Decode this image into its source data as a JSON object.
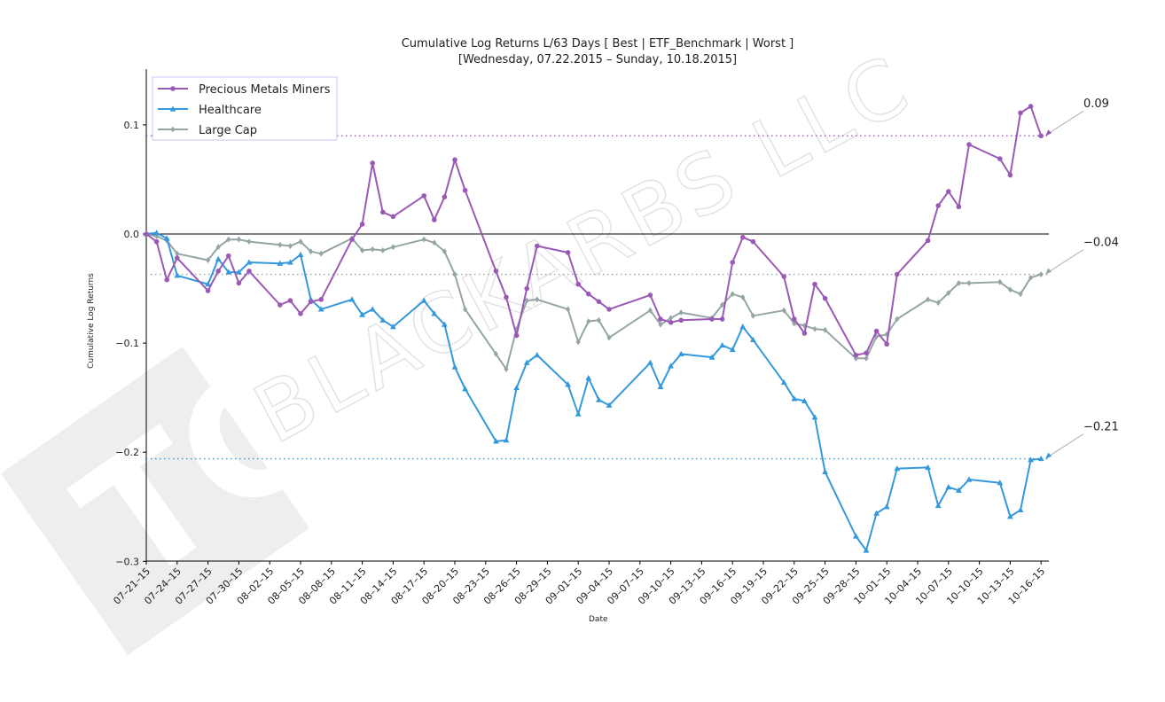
{
  "chart_data": {
    "type": "line",
    "title": "Cumulative Log Returns L/63 Days [ Best | ETF_Benchmark | Worst ]",
    "subtitle": "[Wednesday, 07.22.2015 – Sunday, 10.18.2015]",
    "xlabel": "Date",
    "ylabel": "Cumulative Log Returns",
    "watermark": "BLACKARBS LLC",
    "ylim": [
      -0.3,
      0.15
    ],
    "yticks": [
      0.1,
      0.0,
      -0.1,
      -0.2,
      -0.3
    ],
    "ytick_labels": [
      "0.1",
      "0.0",
      "−0.1",
      "−0.2",
      "−0.3"
    ],
    "xlim": [
      "2015-07-21",
      "2015-10-18"
    ],
    "xtick_labels": [
      "07–21–15",
      "07–24–15",
      "07–27–15",
      "07–30–15",
      "08–02–15",
      "08–05–15",
      "08–08–15",
      "08–11–15",
      "08–14–15",
      "08–17–15",
      "08–20–15",
      "08–23–15",
      "08–26–15",
      "08–29–15",
      "09–01–15",
      "09–04–15",
      "09–07–15",
      "09–10–15",
      "09–13–15",
      "09–16–15",
      "09–19–15",
      "09–22–15",
      "09–25–15",
      "09–28–15",
      "10–01–15",
      "10–04–15",
      "10–07–15",
      "10–10–15",
      "10–13–15",
      "10–16–15"
    ],
    "legend": "top-left",
    "grid": false,
    "zero_line": true,
    "series": [
      {
        "name": "Precious Metals Miners",
        "color": "#9b59b6",
        "marker": "circle",
        "final_label": "0.09",
        "reference_level": 0.09,
        "points": [
          [
            "2015-07-21",
            0.0
          ],
          [
            "2015-07-22",
            -0.007
          ],
          [
            "2015-07-23",
            -0.042
          ],
          [
            "2015-07-24",
            -0.022
          ],
          [
            "2015-07-27",
            -0.052
          ],
          [
            "2015-07-28",
            -0.034
          ],
          [
            "2015-07-29",
            -0.02
          ],
          [
            "2015-07-30",
            -0.045
          ],
          [
            "2015-07-31",
            -0.034
          ],
          [
            "2015-08-03",
            -0.065
          ],
          [
            "2015-08-04",
            -0.061
          ],
          [
            "2015-08-05",
            -0.073
          ],
          [
            "2015-08-06",
            -0.062
          ],
          [
            "2015-08-07",
            -0.06
          ],
          [
            "2015-08-10",
            -0.005
          ],
          [
            "2015-08-11",
            0.009
          ],
          [
            "2015-08-12",
            0.065
          ],
          [
            "2015-08-13",
            0.02
          ],
          [
            "2015-08-14",
            0.016
          ],
          [
            "2015-08-17",
            0.035
          ],
          [
            "2015-08-18",
            0.013
          ],
          [
            "2015-08-19",
            0.034
          ],
          [
            "2015-08-20",
            0.068
          ],
          [
            "2015-08-21",
            0.04
          ],
          [
            "2015-08-24",
            -0.034
          ],
          [
            "2015-08-25",
            -0.058
          ],
          [
            "2015-08-26",
            -0.093
          ],
          [
            "2015-08-27",
            -0.05
          ],
          [
            "2015-08-28",
            -0.011
          ],
          [
            "2015-08-31",
            -0.017
          ],
          [
            "2015-09-01",
            -0.046
          ],
          [
            "2015-09-02",
            -0.055
          ],
          [
            "2015-09-03",
            -0.062
          ],
          [
            "2015-09-04",
            -0.069
          ],
          [
            "2015-09-08",
            -0.056
          ],
          [
            "2015-09-09",
            -0.078
          ],
          [
            "2015-09-10",
            -0.081
          ],
          [
            "2015-09-11",
            -0.079
          ],
          [
            "2015-09-14",
            -0.078
          ],
          [
            "2015-09-15",
            -0.078
          ],
          [
            "2015-09-16",
            -0.026
          ],
          [
            "2015-09-17",
            -0.003
          ],
          [
            "2015-09-18",
            -0.007
          ],
          [
            "2015-09-21",
            -0.039
          ],
          [
            "2015-09-22",
            -0.078
          ],
          [
            "2015-09-23",
            -0.091
          ],
          [
            "2015-09-24",
            -0.046
          ],
          [
            "2015-09-25",
            -0.059
          ],
          [
            "2015-09-28",
            -0.111
          ],
          [
            "2015-09-29",
            -0.109
          ],
          [
            "2015-09-30",
            -0.089
          ],
          [
            "2015-10-01",
            -0.101
          ],
          [
            "2015-10-02",
            -0.037
          ],
          [
            "2015-10-05",
            -0.006
          ],
          [
            "2015-10-06",
            0.026
          ],
          [
            "2015-10-07",
            0.039
          ],
          [
            "2015-10-08",
            0.025
          ],
          [
            "2015-10-09",
            0.082
          ],
          [
            "2015-10-12",
            0.069
          ],
          [
            "2015-10-13",
            0.054
          ],
          [
            "2015-10-14",
            0.111
          ],
          [
            "2015-10-15",
            0.117
          ],
          [
            "2015-10-16",
            0.09
          ]
        ]
      },
      {
        "name": "Healthcare",
        "color": "#3498db",
        "marker": "triangle",
        "final_label": "−0.21",
        "reference_level": -0.206,
        "points": [
          [
            "2015-07-21",
            0.0
          ],
          [
            "2015-07-22",
            0.001
          ],
          [
            "2015-07-23",
            -0.004
          ],
          [
            "2015-07-24",
            -0.038
          ],
          [
            "2015-07-27",
            -0.046
          ],
          [
            "2015-07-28",
            -0.023
          ],
          [
            "2015-07-29",
            -0.035
          ],
          [
            "2015-07-30",
            -0.035
          ],
          [
            "2015-07-31",
            -0.026
          ],
          [
            "2015-08-03",
            -0.027
          ],
          [
            "2015-08-04",
            -0.026
          ],
          [
            "2015-08-05",
            -0.019
          ],
          [
            "2015-08-06",
            -0.06
          ],
          [
            "2015-08-07",
            -0.069
          ],
          [
            "2015-08-10",
            -0.06
          ],
          [
            "2015-08-11",
            -0.074
          ],
          [
            "2015-08-12",
            -0.069
          ],
          [
            "2015-08-13",
            -0.079
          ],
          [
            "2015-08-14",
            -0.085
          ],
          [
            "2015-08-17",
            -0.061
          ],
          [
            "2015-08-18",
            -0.073
          ],
          [
            "2015-08-19",
            -0.083
          ],
          [
            "2015-08-20",
            -0.122
          ],
          [
            "2015-08-21",
            -0.142
          ],
          [
            "2015-08-24",
            -0.19
          ],
          [
            "2015-08-25",
            -0.189
          ],
          [
            "2015-08-26",
            -0.141
          ],
          [
            "2015-08-27",
            -0.118
          ],
          [
            "2015-08-28",
            -0.111
          ],
          [
            "2015-08-31",
            -0.138
          ],
          [
            "2015-09-01",
            -0.165
          ],
          [
            "2015-09-02",
            -0.132
          ],
          [
            "2015-09-03",
            -0.152
          ],
          [
            "2015-09-04",
            -0.157
          ],
          [
            "2015-09-08",
            -0.118
          ],
          [
            "2015-09-09",
            -0.14
          ],
          [
            "2015-09-10",
            -0.121
          ],
          [
            "2015-09-11",
            -0.11
          ],
          [
            "2015-09-14",
            -0.113
          ],
          [
            "2015-09-15",
            -0.102
          ],
          [
            "2015-09-16",
            -0.106
          ],
          [
            "2015-09-17",
            -0.085
          ],
          [
            "2015-09-18",
            -0.097
          ],
          [
            "2015-09-21",
            -0.136
          ],
          [
            "2015-09-22",
            -0.151
          ],
          [
            "2015-09-23",
            -0.153
          ],
          [
            "2015-09-24",
            -0.168
          ],
          [
            "2015-09-25",
            -0.218
          ],
          [
            "2015-09-28",
            -0.277
          ],
          [
            "2015-09-29",
            -0.29
          ],
          [
            "2015-09-30",
            -0.256
          ],
          [
            "2015-10-01",
            -0.25
          ],
          [
            "2015-10-02",
            -0.215
          ],
          [
            "2015-10-05",
            -0.214
          ],
          [
            "2015-10-06",
            -0.249
          ],
          [
            "2015-10-07",
            -0.232
          ],
          [
            "2015-10-08",
            -0.235
          ],
          [
            "2015-10-09",
            -0.225
          ],
          [
            "2015-10-12",
            -0.228
          ],
          [
            "2015-10-13",
            -0.259
          ],
          [
            "2015-10-14",
            -0.253
          ],
          [
            "2015-10-15",
            -0.207
          ],
          [
            "2015-10-16",
            -0.206
          ]
        ]
      },
      {
        "name": "Large Cap",
        "color": "#95a5a6",
        "marker": "diamond",
        "final_label": "−0.04",
        "reference_level": -0.037,
        "points": [
          [
            "2015-07-21",
            0.0
          ],
          [
            "2015-07-22",
            -0.002
          ],
          [
            "2015-07-23",
            -0.006
          ],
          [
            "2015-07-24",
            -0.018
          ],
          [
            "2015-07-27",
            -0.024
          ],
          [
            "2015-07-28",
            -0.012
          ],
          [
            "2015-07-29",
            -0.005
          ],
          [
            "2015-07-30",
            -0.005
          ],
          [
            "2015-07-31",
            -0.007
          ],
          [
            "2015-08-03",
            -0.01
          ],
          [
            "2015-08-04",
            -0.011
          ],
          [
            "2015-08-05",
            -0.007
          ],
          [
            "2015-08-06",
            -0.016
          ],
          [
            "2015-08-07",
            -0.018
          ],
          [
            "2015-08-10",
            -0.004
          ],
          [
            "2015-08-11",
            -0.015
          ],
          [
            "2015-08-12",
            -0.014
          ],
          [
            "2015-08-13",
            -0.015
          ],
          [
            "2015-08-14",
            -0.012
          ],
          [
            "2015-08-17",
            -0.005
          ],
          [
            "2015-08-18",
            -0.008
          ],
          [
            "2015-08-19",
            -0.016
          ],
          [
            "2015-08-20",
            -0.037
          ],
          [
            "2015-08-21",
            -0.069
          ],
          [
            "2015-08-24",
            -0.11
          ],
          [
            "2015-08-25",
            -0.124
          ],
          [
            "2015-08-26",
            -0.087
          ],
          [
            "2015-08-27",
            -0.061
          ],
          [
            "2015-08-28",
            -0.06
          ],
          [
            "2015-08-31",
            -0.069
          ],
          [
            "2015-09-01",
            -0.099
          ],
          [
            "2015-09-02",
            -0.08
          ],
          [
            "2015-09-03",
            -0.079
          ],
          [
            "2015-09-04",
            -0.095
          ],
          [
            "2015-09-08",
            -0.07
          ],
          [
            "2015-09-09",
            -0.083
          ],
          [
            "2015-09-10",
            -0.077
          ],
          [
            "2015-09-11",
            -0.072
          ],
          [
            "2015-09-14",
            -0.077
          ],
          [
            "2015-09-15",
            -0.065
          ],
          [
            "2015-09-16",
            -0.055
          ],
          [
            "2015-09-17",
            -0.058
          ],
          [
            "2015-09-18",
            -0.075
          ],
          [
            "2015-09-21",
            -0.07
          ],
          [
            "2015-09-22",
            -0.082
          ],
          [
            "2015-09-23",
            -0.084
          ],
          [
            "2015-09-24",
            -0.087
          ],
          [
            "2015-09-25",
            -0.088
          ],
          [
            "2015-09-28",
            -0.114
          ],
          [
            "2015-09-29",
            -0.114
          ],
          [
            "2015-09-30",
            -0.094
          ],
          [
            "2015-10-01",
            -0.092
          ],
          [
            "2015-10-02",
            -0.078
          ],
          [
            "2015-10-05",
            -0.06
          ],
          [
            "2015-10-06",
            -0.063
          ],
          [
            "2015-10-07",
            -0.054
          ],
          [
            "2015-10-08",
            -0.045
          ],
          [
            "2015-10-09",
            -0.045
          ],
          [
            "2015-10-12",
            -0.044
          ],
          [
            "2015-10-13",
            -0.051
          ],
          [
            "2015-10-14",
            -0.055
          ],
          [
            "2015-10-15",
            -0.04
          ],
          [
            "2015-10-16",
            -0.037
          ]
        ]
      }
    ]
  }
}
